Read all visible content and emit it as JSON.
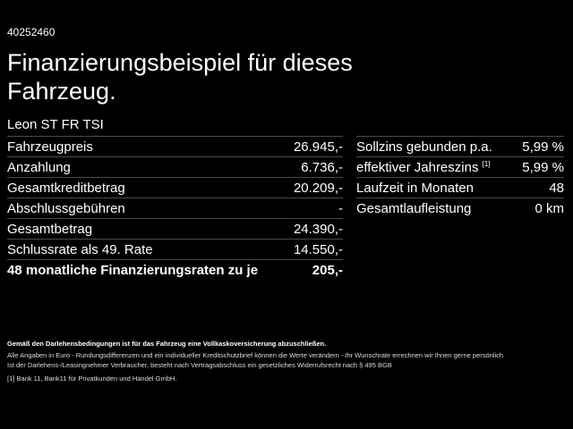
{
  "offer_id": "40252460",
  "title": "Finanzierungsbeispiel für dieses Fahrzeug.",
  "model": "Leon ST FR TSI",
  "left_rows": [
    {
      "label": "Fahrzeugpreis",
      "value": "26.945,-"
    },
    {
      "label": "Anzahlung",
      "value": "6.736,-"
    },
    {
      "label": "Gesamtkreditbetrag",
      "value": "20.209,-"
    },
    {
      "label": "Abschlussgebühren",
      "value": "-"
    },
    {
      "label": "Gesamtbetrag",
      "value": "24.390,-"
    },
    {
      "label": "Schlussrate als 49. Rate",
      "value": "14.550,-"
    },
    {
      "label": "48 monatliche Finanzierungsraten zu je",
      "value": "205,-"
    }
  ],
  "right_rows": [
    {
      "label": "Sollzins gebunden p.a.",
      "value": "5,99 %"
    },
    {
      "label": "effektiver Jahreszins",
      "sup": "[1]",
      "value": "5,99 %"
    },
    {
      "label": "Laufzeit in Monaten",
      "value": "48"
    },
    {
      "label": "Gesamtlaufleistung",
      "value": "0 km"
    }
  ],
  "footer": {
    "insurance": "Gemäß den Darlehensbedingungen ist für das Fahrzeug eine Vollkaskoversicherung abzuschließen.",
    "note1": "Alle Angaben in Euro - Rundungsdifferenzen und ein individueller Kreditschutzbrief können die Werte verändern - Ihr Wunschrate errechnen wir Ihnen gerne persönlich",
    "note2": "Ist der Darlehens-/Leasingnehmer Verbraucher, besteht nach Vertragsabschluss ein gesetzliches Widerrufsrecht nach § 495 BGB",
    "footnote_mark": "[1]",
    "footnote": "Bank 11, Bank11 für Privatkunden und Handel GmbH."
  }
}
